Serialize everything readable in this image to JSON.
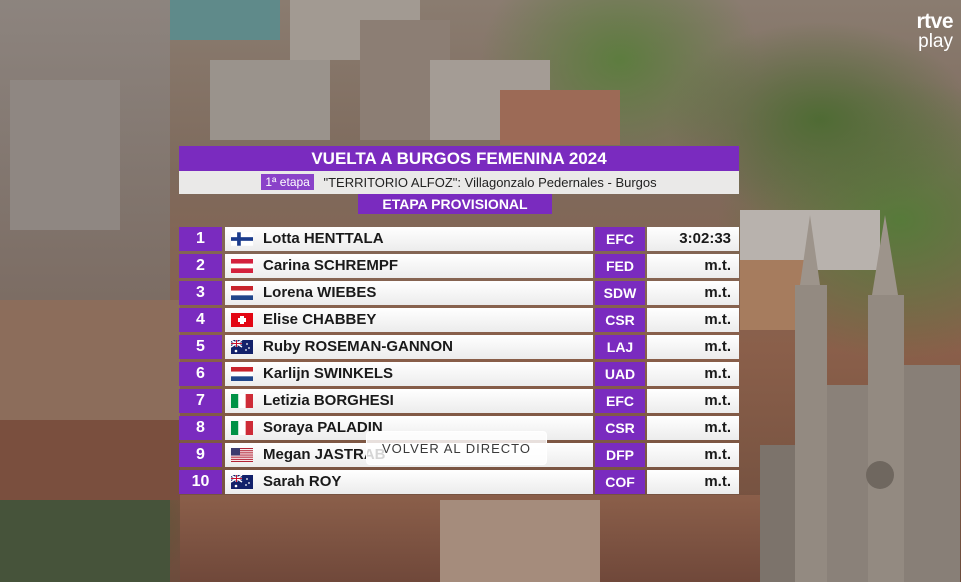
{
  "brand": {
    "line1": "rtve",
    "line2": "play"
  },
  "graphic": {
    "title": "VUELTA A BURGOS FEMENINA 2024",
    "stage_badge": "1ª etapa",
    "stage_name": "\"TERRITORIO ALFOZ\": Villagonzalo Pedernales - Burgos",
    "status": "ETAPA PROVISIONAL",
    "results": [
      {
        "pos": "1",
        "flag": "FIN",
        "rider": "Lotta HENTTALA",
        "team": "EFC",
        "time": "3:02:33"
      },
      {
        "pos": "2",
        "flag": "AUT",
        "rider": "Carina SCHREMPF",
        "team": "FED",
        "time": "m.t."
      },
      {
        "pos": "3",
        "flag": "NED",
        "rider": "Lorena WIEBES",
        "team": "SDW",
        "time": "m.t."
      },
      {
        "pos": "4",
        "flag": "SUI",
        "rider": "Elise CHABBEY",
        "team": "CSR",
        "time": "m.t."
      },
      {
        "pos": "5",
        "flag": "AUS",
        "rider": "Ruby ROSEMAN-GANNON",
        "team": "LAJ",
        "time": "m.t."
      },
      {
        "pos": "6",
        "flag": "NED",
        "rider": "Karlijn SWINKELS",
        "team": "UAD",
        "time": "m.t."
      },
      {
        "pos": "7",
        "flag": "ITA",
        "rider": "Letizia BORGHESI",
        "team": "EFC",
        "time": "m.t."
      },
      {
        "pos": "8",
        "flag": "ITA",
        "rider": "Soraya PALADIN",
        "team": "CSR",
        "time": "m.t."
      },
      {
        "pos": "9",
        "flag": "USA",
        "rider": "Megan JASTRAB",
        "team": "DFP",
        "time": "m.t."
      },
      {
        "pos": "10",
        "flag": "AUS",
        "rider": "Sarah ROY",
        "team": "COF",
        "time": "m.t."
      }
    ]
  },
  "overlay": {
    "back_to_live_label": "VOLVER AL DIRECTO"
  },
  "colors": {
    "accent_purple": "#7a2bbf",
    "row_white": "#ffffff"
  }
}
